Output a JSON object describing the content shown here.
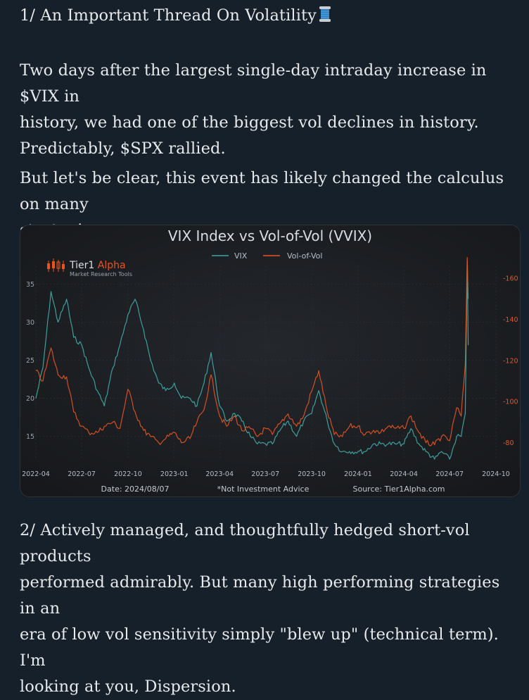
{
  "post": {
    "title": "1/ An Important Thread On Volatility",
    "title_icon": "spool-of-thread-emoji",
    "para1": "Two  days after the largest single-day intraday increase in $VIX in\nhistory, we had one of the biggest vol declines in history.\nPredictably, $SPX rallied.",
    "para2": "But let's be clear, this event has likely changed the calculus on many\nstrategies.",
    "para3": "2/ Actively managed, and thoughtfully hedged short-vol products\nperformed admirably. But many high performing strategies in an\nera of low vol sensitivity simply \"blew up\" (technical term). I'm\nlooking at you, Dispersion."
  },
  "chart_data": {
    "type": "line",
    "title": "VIX Index vs Vol-of-Vol (VVIX)",
    "logo": {
      "name": "Tier1",
      "accent": "Alpha",
      "tagline": "Market Research Tools"
    },
    "legend": [
      "VIX",
      "Vol-of-Vol"
    ],
    "legend_position": "top-center",
    "colors": {
      "VIX": "#3fa6a1",
      "Vol-of-Vol": "#e8551f",
      "title": "#d9dde3",
      "tick_left": "#9aa3ad",
      "tick_right": "#e8551f"
    },
    "x_ticks": [
      "2022-04",
      "2022-07",
      "2022-10",
      "2023-01",
      "2023-04",
      "2023-07",
      "2023-10",
      "2024-01",
      "2024-04",
      "2024-07",
      "2024-10"
    ],
    "xlim": [
      "2022-04",
      "2024-10"
    ],
    "y_left": {
      "label": "",
      "ticks": [
        15,
        20,
        25,
        30,
        35
      ],
      "ylim": [
        12,
        39
      ]
    },
    "y_right": {
      "label": "",
      "ticks": [
        80,
        100,
        120,
        140,
        160
      ],
      "ylim": [
        72,
        172
      ]
    },
    "footer": {
      "date": "Date: 2024/08/07",
      "note": "*Not Investment Advice",
      "source": "Source: Tier1Alpha.com"
    },
    "series": [
      {
        "name": "VIX",
        "axis": "left",
        "x": [
          "2022-04-01",
          "2022-04-15",
          "2022-05-01",
          "2022-05-15",
          "2022-06-01",
          "2022-06-15",
          "2022-07-01",
          "2022-07-15",
          "2022-08-01",
          "2022-08-15",
          "2022-09-01",
          "2022-09-15",
          "2022-10-01",
          "2022-10-15",
          "2022-11-01",
          "2022-11-15",
          "2022-12-01",
          "2022-12-15",
          "2023-01-01",
          "2023-01-15",
          "2023-02-01",
          "2023-02-15",
          "2023-03-01",
          "2023-03-15",
          "2023-04-01",
          "2023-04-15",
          "2023-05-01",
          "2023-05-15",
          "2023-06-01",
          "2023-06-15",
          "2023-07-01",
          "2023-07-15",
          "2023-08-01",
          "2023-08-15",
          "2023-09-01",
          "2023-09-15",
          "2023-10-01",
          "2023-10-15",
          "2023-11-01",
          "2023-11-15",
          "2023-12-01",
          "2023-12-15",
          "2024-01-01",
          "2024-01-15",
          "2024-02-01",
          "2024-02-15",
          "2024-03-01",
          "2024-03-15",
          "2024-04-01",
          "2024-04-15",
          "2024-05-01",
          "2024-05-15",
          "2024-06-01",
          "2024-06-15",
          "2024-07-01",
          "2024-07-15",
          "2024-07-24",
          "2024-08-01",
          "2024-08-05",
          "2024-08-07"
        ],
        "values": [
          20,
          24,
          34,
          30,
          33,
          28,
          27,
          24,
          21,
          19,
          24,
          27,
          31,
          33,
          29,
          25,
          22,
          21,
          22,
          20,
          20,
          19,
          22,
          26,
          19,
          17,
          18,
          17,
          15,
          14,
          14,
          14,
          16,
          17,
          15,
          17,
          18,
          21,
          17,
          14,
          13,
          13,
          13,
          13,
          14,
          14,
          14,
          14,
          14,
          16,
          14,
          13,
          12,
          13,
          12,
          15,
          15,
          18,
          38,
          27
        ]
      },
      {
        "name": "Vol-of-Vol",
        "axis": "right",
        "x": [
          "2022-04-01",
          "2022-04-15",
          "2022-05-01",
          "2022-05-15",
          "2022-06-01",
          "2022-06-15",
          "2022-07-01",
          "2022-07-15",
          "2022-08-01",
          "2022-08-15",
          "2022-09-01",
          "2022-09-15",
          "2022-10-01",
          "2022-10-15",
          "2022-11-01",
          "2022-11-15",
          "2022-12-01",
          "2022-12-15",
          "2023-01-01",
          "2023-01-15",
          "2023-02-01",
          "2023-02-15",
          "2023-03-01",
          "2023-03-15",
          "2023-04-01",
          "2023-04-15",
          "2023-05-01",
          "2023-05-15",
          "2023-06-01",
          "2023-06-15",
          "2023-07-01",
          "2023-07-15",
          "2023-08-01",
          "2023-08-15",
          "2023-09-01",
          "2023-09-15",
          "2023-10-01",
          "2023-10-15",
          "2023-11-01",
          "2023-11-15",
          "2023-12-01",
          "2023-12-15",
          "2024-01-01",
          "2024-01-15",
          "2024-02-01",
          "2024-02-15",
          "2024-03-01",
          "2024-03-15",
          "2024-04-01",
          "2024-04-15",
          "2024-05-01",
          "2024-05-15",
          "2024-06-01",
          "2024-06-15",
          "2024-07-01",
          "2024-07-15",
          "2024-07-24",
          "2024-08-01",
          "2024-08-05",
          "2024-08-07"
        ],
        "values": [
          115,
          110,
          126,
          113,
          112,
          95,
          88,
          85,
          85,
          88,
          90,
          87,
          106,
          95,
          86,
          83,
          80,
          82,
          85,
          80,
          82,
          90,
          96,
          113,
          93,
          88,
          93,
          86,
          87,
          83,
          87,
          84,
          90,
          94,
          88,
          93,
          105,
          115,
          95,
          84,
          83,
          88,
          88,
          84,
          86,
          85,
          88,
          87,
          87,
          93,
          85,
          80,
          79,
          83,
          81,
          97,
          93,
          118,
          170,
          150
        ]
      }
    ]
  }
}
